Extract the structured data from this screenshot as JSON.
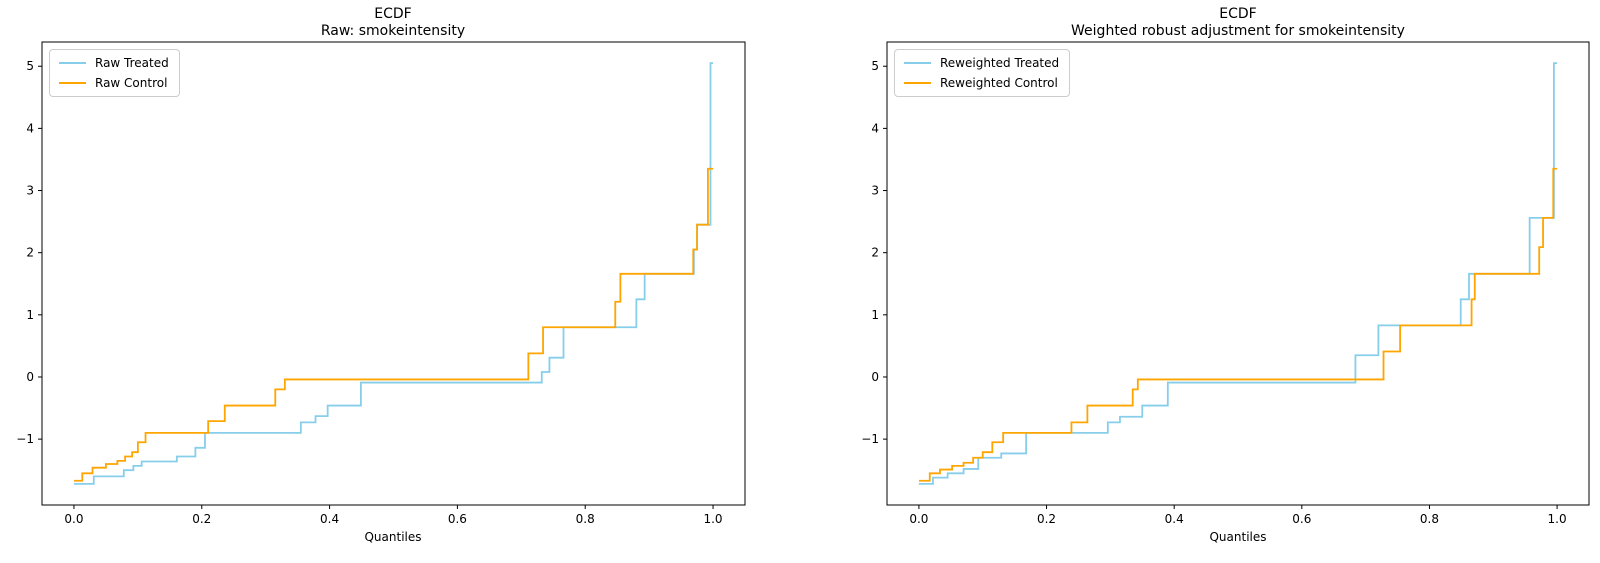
{
  "figure": {
    "background": "#ffffff",
    "text_color": "#000000",
    "spine_color": "#000000",
    "legend_border_color": "#cccccc"
  },
  "chart_data": [
    {
      "type": "line",
      "subtype": "quantile-step-ecdf",
      "title": [
        "ECDF",
        "Raw: smokeintensity"
      ],
      "xlabel": "Quantiles",
      "ylabel": "",
      "xlim": [
        -0.05,
        1.05
      ],
      "ylim": [
        -2.06,
        5.39
      ],
      "xticks": [
        0.0,
        0.2,
        0.4,
        0.6,
        0.8,
        1.0
      ],
      "xticklabels": [
        "0.0",
        "0.2",
        "0.4",
        "0.6",
        "0.8",
        "1.0"
      ],
      "yticks": [
        -1,
        0,
        1,
        2,
        3,
        4,
        5
      ],
      "yticklabels": [
        "−1",
        "0",
        "1",
        "2",
        "3",
        "4",
        "5"
      ],
      "grid": false,
      "legend_position": "upper left",
      "series": [
        {
          "name": "Raw Treated",
          "color": "#87CEEB",
          "points": [
            [
              0.0,
              -1.72
            ],
            [
              0.031,
              -1.6
            ],
            [
              0.078,
              -1.5
            ],
            [
              0.093,
              -1.43
            ],
            [
              0.106,
              -1.36
            ],
            [
              0.161,
              -1.28
            ],
            [
              0.19,
              -1.14
            ],
            [
              0.205,
              -0.9
            ],
            [
              0.355,
              -0.73
            ],
            [
              0.378,
              -0.63
            ],
            [
              0.397,
              -0.46
            ],
            [
              0.449,
              -0.09
            ],
            [
              0.732,
              0.08
            ],
            [
              0.744,
              0.31
            ],
            [
              0.766,
              0.8
            ],
            [
              0.88,
              1.25
            ],
            [
              0.893,
              1.66
            ],
            [
              0.97,
              2.05
            ],
            [
              0.975,
              2.45
            ],
            [
              0.996,
              5.05
            ]
          ]
        },
        {
          "name": "Raw Control",
          "color": "#FFA500",
          "points": [
            [
              0.0,
              -1.67
            ],
            [
              0.013,
              -1.55
            ],
            [
              0.029,
              -1.46
            ],
            [
              0.05,
              -1.4
            ],
            [
              0.068,
              -1.35
            ],
            [
              0.08,
              -1.28
            ],
            [
              0.091,
              -1.21
            ],
            [
              0.1,
              -1.05
            ],
            [
              0.112,
              -0.9
            ],
            [
              0.21,
              -0.71
            ],
            [
              0.236,
              -0.46
            ],
            [
              0.315,
              -0.2
            ],
            [
              0.33,
              -0.04
            ],
            [
              0.711,
              0.38
            ],
            [
              0.734,
              0.8
            ],
            [
              0.847,
              1.21
            ],
            [
              0.855,
              1.66
            ],
            [
              0.969,
              2.05
            ],
            [
              0.975,
              2.45
            ],
            [
              0.992,
              3.35
            ]
          ]
        }
      ]
    },
    {
      "type": "line",
      "subtype": "quantile-step-ecdf",
      "title": [
        "ECDF",
        "Weighted robust adjustment for smokeintensity"
      ],
      "xlabel": "Quantiles",
      "ylabel": "",
      "xlim": [
        -0.05,
        1.05
      ],
      "ylim": [
        -2.06,
        5.39
      ],
      "xticks": [
        0.0,
        0.2,
        0.4,
        0.6,
        0.8,
        1.0
      ],
      "xticklabels": [
        "0.0",
        "0.2",
        "0.4",
        "0.6",
        "0.8",
        "1.0"
      ],
      "yticks": [
        -1,
        0,
        1,
        2,
        3,
        4,
        5
      ],
      "yticklabels": [
        "−1",
        "0",
        "1",
        "2",
        "3",
        "4",
        "5"
      ],
      "grid": false,
      "legend_position": "upper left",
      "series": [
        {
          "name": "Reweighted Treated",
          "color": "#87CEEB",
          "points": [
            [
              0.0,
              -1.72
            ],
            [
              0.022,
              -1.62
            ],
            [
              0.045,
              -1.55
            ],
            [
              0.07,
              -1.48
            ],
            [
              0.093,
              -1.3
            ],
            [
              0.129,
              -1.23
            ],
            [
              0.168,
              -0.9
            ],
            [
              0.296,
              -0.73
            ],
            [
              0.315,
              -0.64
            ],
            [
              0.35,
              -0.46
            ],
            [
              0.39,
              -0.09
            ],
            [
              0.684,
              0.35
            ],
            [
              0.72,
              0.83
            ],
            [
              0.849,
              1.25
            ],
            [
              0.862,
              1.66
            ],
            [
              0.957,
              2.56
            ],
            [
              0.995,
              5.05
            ]
          ]
        },
        {
          "name": "Reweighted Control",
          "color": "#FFA500",
          "points": [
            [
              0.0,
              -1.67
            ],
            [
              0.017,
              -1.55
            ],
            [
              0.033,
              -1.49
            ],
            [
              0.052,
              -1.43
            ],
            [
              0.07,
              -1.38
            ],
            [
              0.085,
              -1.3
            ],
            [
              0.1,
              -1.21
            ],
            [
              0.115,
              -1.05
            ],
            [
              0.132,
              -0.9
            ],
            [
              0.239,
              -0.73
            ],
            [
              0.264,
              -0.46
            ],
            [
              0.335,
              -0.2
            ],
            [
              0.343,
              -0.04
            ],
            [
              0.728,
              0.41
            ],
            [
              0.754,
              0.83
            ],
            [
              0.866,
              1.25
            ],
            [
              0.871,
              1.66
            ],
            [
              0.972,
              2.09
            ],
            [
              0.978,
              2.56
            ],
            [
              0.994,
              3.35
            ]
          ]
        }
      ]
    }
  ]
}
